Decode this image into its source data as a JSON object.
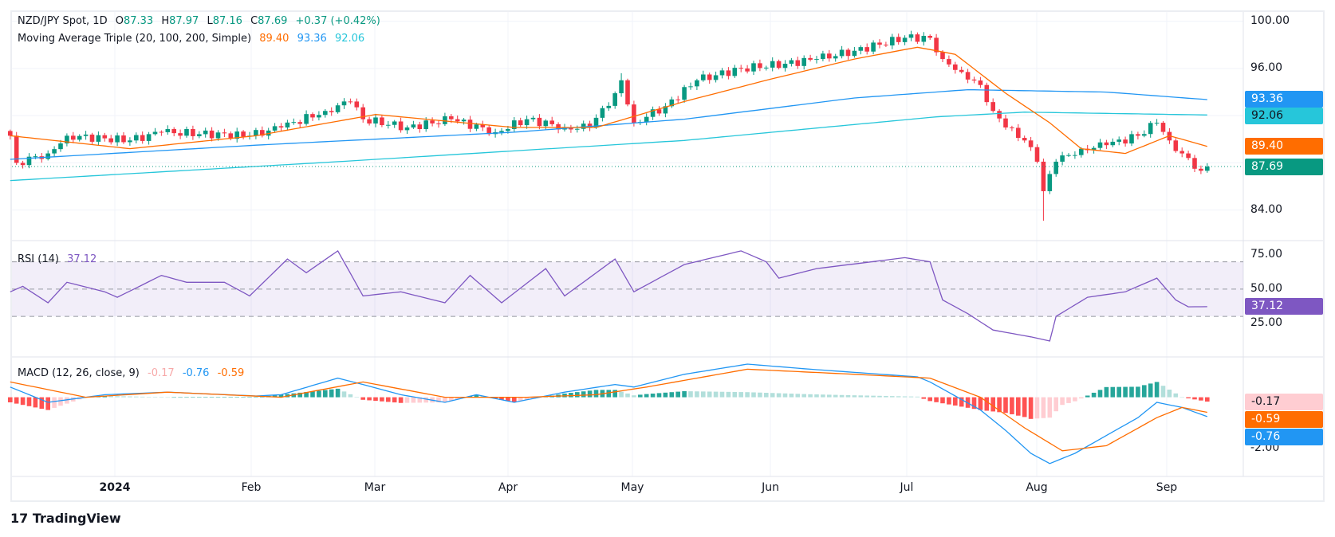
{
  "legend": {
    "symbol": "NZD/JPY Spot, 1D",
    "o_label": "O",
    "o": "87.33",
    "h_label": "H",
    "h": "87.97",
    "l_label": "L",
    "l": "87.16",
    "c_label": "C",
    "c": "87.69",
    "change": "+0.37 (+0.42%)",
    "ma_title": "Moving Average Triple (20, 100, 200, Simple)",
    "ma20": "89.40",
    "ma100": "93.36",
    "ma200": "92.06",
    "rsi_title": "RSI (14)",
    "rsi": "37.12",
    "macd_title": "MACD (12, 26, close, 9)",
    "macd_hist": "-0.17",
    "macd_line": "-0.76",
    "macd_signal": "-0.59"
  },
  "axes": {
    "price_ticks": [
      "100.00",
      "96.00",
      "84.00"
    ],
    "rsi_ticks": [
      "75.00",
      "50.00",
      "25.00"
    ],
    "macd_ticks": [
      "-2.00"
    ],
    "time_labels": [
      "2024",
      "Feb",
      "Mar",
      "Apr",
      "May",
      "Jun",
      "Jul",
      "Aug",
      "Sep"
    ]
  },
  "brand": "TradingView",
  "colors": {
    "up": "#089981",
    "down": "#F23645",
    "ma20": "#FF6D00",
    "ma100": "#2196F3",
    "ma200": "#26C6DA",
    "rsi": "#7E57C2"
  },
  "chart_data": {
    "type": "candlestick",
    "title": "NZD/JPY Spot, 1D",
    "bars": 191,
    "last_bar": {
      "open": 87.33,
      "high": 87.97,
      "low": 87.16,
      "close": 87.69
    },
    "close_keypoints": [
      [
        0,
        90.3
      ],
      [
        1,
        88.0
      ],
      [
        6,
        88.8
      ],
      [
        9,
        90.3
      ],
      [
        19,
        89.9
      ],
      [
        24,
        90.6
      ],
      [
        38,
        90.3
      ],
      [
        43,
        91.0
      ],
      [
        50,
        92.4
      ],
      [
        54,
        93.2
      ],
      [
        56,
        91.7
      ],
      [
        63,
        91.0
      ],
      [
        70,
        91.7
      ],
      [
        77,
        90.6
      ],
      [
        82,
        91.7
      ],
      [
        88,
        91.0
      ],
      [
        92,
        91.0
      ],
      [
        96,
        93.9
      ],
      [
        97,
        95.0
      ],
      [
        99,
        91.4
      ],
      [
        104,
        92.8
      ],
      [
        109,
        95.0
      ],
      [
        116,
        96.0
      ],
      [
        123,
        96.4
      ],
      [
        128,
        96.8
      ],
      [
        134,
        97.5
      ],
      [
        142,
        98.6
      ],
      [
        146,
        98.6
      ],
      [
        148,
        96.8
      ],
      [
        151,
        95.7
      ],
      [
        154,
        94.6
      ],
      [
        156,
        92.4
      ],
      [
        158,
        91.0
      ],
      [
        161,
        89.9
      ],
      [
        163,
        88.1
      ],
      [
        164,
        85.6
      ],
      [
        166,
        88.1
      ],
      [
        170,
        89.2
      ],
      [
        174,
        89.5
      ],
      [
        179,
        90.3
      ],
      [
        182,
        91.4
      ],
      [
        184,
        89.9
      ],
      [
        186,
        88.8
      ],
      [
        189,
        87.33
      ],
      [
        190,
        87.69
      ]
    ],
    "aug_low": {
      "bar": 164,
      "low": 83.1
    },
    "ma20": [
      [
        0,
        90.3
      ],
      [
        19,
        89.2
      ],
      [
        39,
        90.3
      ],
      [
        58,
        92.1
      ],
      [
        80,
        91.0
      ],
      [
        93,
        91.0
      ],
      [
        107,
        93.2
      ],
      [
        120,
        95.0
      ],
      [
        134,
        96.8
      ],
      [
        144,
        97.8
      ],
      [
        150,
        97.2
      ],
      [
        158,
        93.9
      ],
      [
        165,
        91.4
      ],
      [
        170,
        89.2
      ],
      [
        177,
        88.8
      ],
      [
        184,
        90.3
      ],
      [
        190,
        89.4
      ]
    ],
    "ma100": [
      [
        0,
        88.3
      ],
      [
        39,
        89.5
      ],
      [
        80,
        90.6
      ],
      [
        107,
        91.7
      ],
      [
        134,
        93.5
      ],
      [
        152,
        94.2
      ],
      [
        174,
        94.0
      ],
      [
        190,
        93.36
      ]
    ],
    "ma200": [
      [
        0,
        86.5
      ],
      [
        52,
        88.1
      ],
      [
        107,
        89.9
      ],
      [
        147,
        91.9
      ],
      [
        161,
        92.3
      ],
      [
        190,
        92.06
      ]
    ],
    "price_range": [
      82.4,
      100.9
    ],
    "rsi": [
      [
        0,
        48
      ],
      [
        2,
        52
      ],
      [
        6,
        40
      ],
      [
        9,
        55
      ],
      [
        15,
        48
      ],
      [
        17,
        44
      ],
      [
        24,
        60
      ],
      [
        28,
        55
      ],
      [
        34,
        55
      ],
      [
        38,
        45
      ],
      [
        44,
        72
      ],
      [
        47,
        62
      ],
      [
        52,
        78
      ],
      [
        56,
        45
      ],
      [
        62,
        48
      ],
      [
        69,
        40
      ],
      [
        73,
        60
      ],
      [
        78,
        40
      ],
      [
        85,
        65
      ],
      [
        88,
        45
      ],
      [
        96,
        72
      ],
      [
        99,
        48
      ],
      [
        107,
        68
      ],
      [
        116,
        78
      ],
      [
        120,
        70
      ],
      [
        122,
        58
      ],
      [
        128,
        65
      ],
      [
        142,
        73
      ],
      [
        146,
        70
      ],
      [
        148,
        42
      ],
      [
        152,
        32
      ],
      [
        156,
        20
      ],
      [
        162,
        15
      ],
      [
        165,
        12
      ],
      [
        166,
        30
      ],
      [
        171,
        44
      ],
      [
        177,
        48
      ],
      [
        182,
        58
      ],
      [
        185,
        42
      ],
      [
        187,
        37
      ],
      [
        190,
        37.12
      ]
    ],
    "rsi_levels": [
      70,
      50,
      30
    ],
    "macd": [
      [
        0,
        0.4
      ],
      [
        6,
        -0.2
      ],
      [
        15,
        0.1
      ],
      [
        25,
        0.2
      ],
      [
        39,
        0.05
      ],
      [
        43,
        0.1
      ],
      [
        52,
        0.75
      ],
      [
        56,
        0.5
      ],
      [
        62,
        0.1
      ],
      [
        69,
        -0.2
      ],
      [
        74,
        0.1
      ],
      [
        80,
        -0.2
      ],
      [
        88,
        0.2
      ],
      [
        96,
        0.5
      ],
      [
        99,
        0.4
      ],
      [
        107,
        0.9
      ],
      [
        117,
        1.3
      ],
      [
        127,
        1.1
      ],
      [
        144,
        0.8
      ],
      [
        146,
        0.6
      ],
      [
        154,
        -0.5
      ],
      [
        158,
        -1.3
      ],
      [
        162,
        -2.2
      ],
      [
        165,
        -2.6
      ],
      [
        169,
        -2.2
      ],
      [
        174,
        -1.5
      ],
      [
        179,
        -0.8
      ],
      [
        182,
        -0.2
      ],
      [
        186,
        -0.4
      ],
      [
        190,
        -0.76
      ]
    ],
    "signal": [
      [
        0,
        0.6
      ],
      [
        12,
        0.0
      ],
      [
        25,
        0.2
      ],
      [
        43,
        0.0
      ],
      [
        56,
        0.6
      ],
      [
        69,
        0.0
      ],
      [
        82,
        0.0
      ],
      [
        93,
        0.1
      ],
      [
        101,
        0.4
      ],
      [
        117,
        1.1
      ],
      [
        134,
        0.9
      ],
      [
        146,
        0.75
      ],
      [
        154,
        0.0
      ],
      [
        161,
        -1.2
      ],
      [
        167,
        -2.1
      ],
      [
        174,
        -1.9
      ],
      [
        182,
        -0.8
      ],
      [
        186,
        -0.4
      ],
      [
        190,
        -0.59
      ]
    ]
  }
}
